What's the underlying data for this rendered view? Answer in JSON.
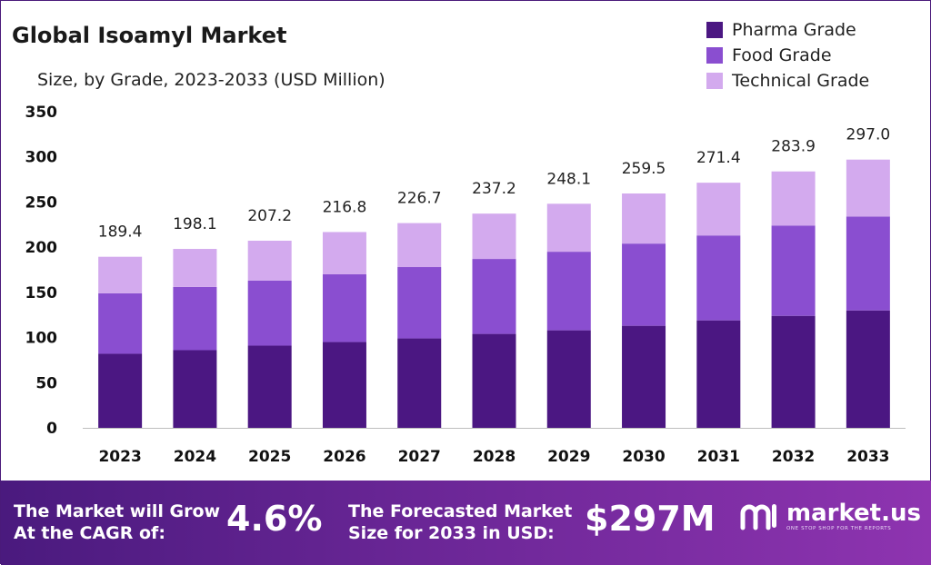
{
  "title": "Global Isoamyl Market",
  "subtitle": "Size, by Grade, 2023-2033 (USD Million)",
  "colors": {
    "pharma": "#4b1782",
    "food": "#8a4ed0",
    "technical": "#d3aaee"
  },
  "chart_data": {
    "type": "bar",
    "stacked": true,
    "title": "Global Isoamyl Market",
    "subtitle": "Size, by Grade, 2023-2033 (USD Million)",
    "categories": [
      "2023",
      "2024",
      "2025",
      "2026",
      "2027",
      "2028",
      "2029",
      "2030",
      "2031",
      "2032",
      "2033"
    ],
    "series": [
      {
        "name": "Pharma Grade",
        "color": "#4b1782",
        "values": [
          82,
          86,
          91,
          95,
          99,
          104,
          108,
          113,
          119,
          124,
          130
        ]
      },
      {
        "name": "Food Grade",
        "color": "#8a4ed0",
        "values": [
          67,
          70,
          72,
          75,
          79,
          83,
          87,
          91,
          94,
          100,
          104
        ]
      },
      {
        "name": "Technical Grade",
        "color": "#d3aaee",
        "values": [
          40.4,
          42.1,
          44.2,
          46.8,
          48.7,
          50.2,
          53.1,
          55.5,
          58.4,
          59.9,
          63.0
        ]
      }
    ],
    "totals": [
      "189.4",
      "198.1",
      "207.2",
      "216.8",
      "226.7",
      "237.2",
      "248.1",
      "259.5",
      "271.4",
      "283.9",
      "297.0"
    ],
    "yticks": [
      0,
      50,
      100,
      150,
      200,
      250,
      300,
      350
    ],
    "ylim": [
      0,
      350
    ],
    "grid": false,
    "legend": "top-right"
  },
  "banner": {
    "cagr_text_line1": "The Market will Grow",
    "cagr_text_line2": "At the CAGR of:",
    "cagr_value": "4.6%",
    "forecast_text_line1": "The Forecasted Market",
    "forecast_text_line2": "Size for 2033 in USD:",
    "forecast_value": "$297M",
    "brand_name": "market.us",
    "brand_tagline": "ONE STOP SHOP FOR THE REPORTS"
  }
}
